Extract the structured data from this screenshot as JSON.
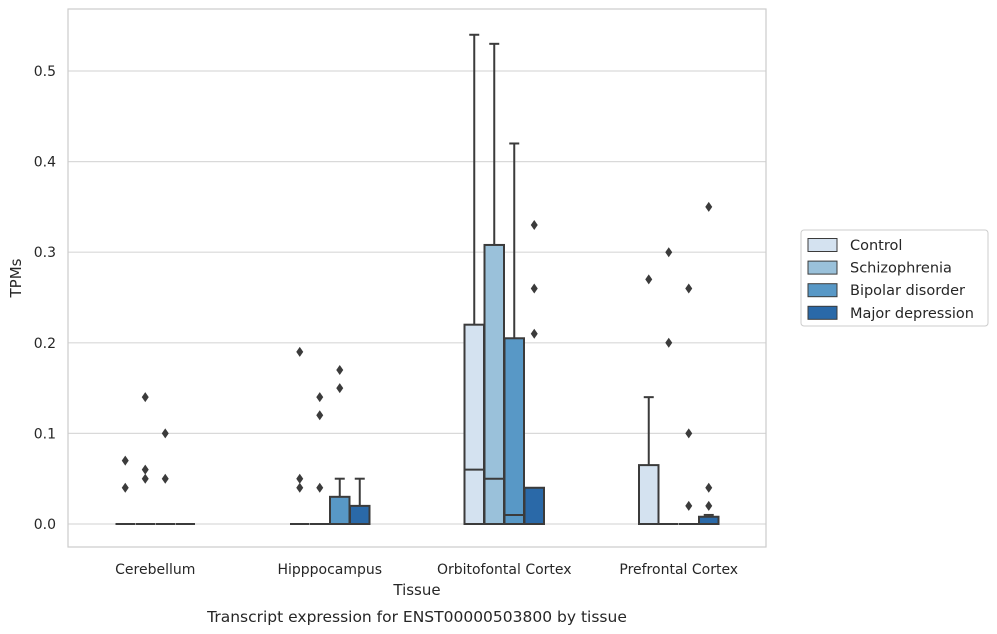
{
  "caption": "Transcript expression for ENST00000503800 by tissue",
  "chart_data": {
    "type": "box",
    "title": "",
    "xlabel": "Tissue",
    "ylabel": "TPMs",
    "ylim": [
      -0.026,
      0.57
    ],
    "yticks": [
      0.0,
      0.1,
      0.2,
      0.3,
      0.4,
      0.5
    ],
    "ytick_labels": [
      "0.0",
      "0.1",
      "0.2",
      "0.3",
      "0.4",
      "0.5"
    ],
    "grid": true,
    "legend_position": "right",
    "categories": [
      "Cerebellum",
      "Hipppocampus",
      "Orbitofontal Cortex",
      "Prefrontal Cortex"
    ],
    "series": [
      {
        "name": "Control",
        "color": "#d4e2f0",
        "boxes": [
          {
            "q1": 0,
            "median": 0,
            "q3": 0,
            "whisker_low": 0,
            "whisker_high": 0,
            "outliers": [
              0.04,
              0.07
            ]
          },
          {
            "q1": 0,
            "median": 0,
            "q3": 0,
            "whisker_low": 0,
            "whisker_high": 0,
            "outliers": [
              0.04,
              0.05,
              0.19
            ]
          },
          {
            "q1": 0,
            "median": 0.06,
            "q3": 0.22,
            "whisker_low": 0,
            "whisker_high": 0.54,
            "outliers": []
          },
          {
            "q1": 0,
            "median": 0,
            "q3": 0.065,
            "whisker_low": 0,
            "whisker_high": 0.14,
            "outliers": [
              0.27
            ]
          }
        ]
      },
      {
        "name": "Schizophrenia",
        "color": "#9ac1da",
        "boxes": [
          {
            "q1": 0,
            "median": 0,
            "q3": 0,
            "whisker_low": 0,
            "whisker_high": 0,
            "outliers": [
              0.05,
              0.06,
              0.14
            ]
          },
          {
            "q1": 0,
            "median": 0,
            "q3": 0,
            "whisker_low": 0,
            "whisker_high": 0,
            "outliers": [
              0.04,
              0.12,
              0.14
            ]
          },
          {
            "q1": 0,
            "median": 0.05,
            "q3": 0.308,
            "whisker_low": 0,
            "whisker_high": 0.53,
            "outliers": []
          },
          {
            "q1": 0,
            "median": 0,
            "q3": 0,
            "whisker_low": 0,
            "whisker_high": 0,
            "outliers": [
              0.2,
              0.3
            ]
          }
        ]
      },
      {
        "name": "Bipolar disorder",
        "color": "#5898c6",
        "boxes": [
          {
            "q1": 0,
            "median": 0,
            "q3": 0,
            "whisker_low": 0,
            "whisker_high": 0,
            "outliers": [
              0.05,
              0.1
            ]
          },
          {
            "q1": 0,
            "median": 0,
            "q3": 0.03,
            "whisker_low": 0,
            "whisker_high": 0.05,
            "outliers": [
              0.15,
              0.17
            ]
          },
          {
            "q1": 0,
            "median": 0.01,
            "q3": 0.205,
            "whisker_low": 0,
            "whisker_high": 0.42,
            "outliers": []
          },
          {
            "q1": 0,
            "median": 0,
            "q3": 0,
            "whisker_low": 0,
            "whisker_high": 0,
            "outliers": [
              0.02,
              0.1,
              0.26
            ]
          }
        ]
      },
      {
        "name": "Major depression",
        "color": "#2a69a8",
        "boxes": [
          {
            "q1": 0,
            "median": 0,
            "q3": 0,
            "whisker_low": 0,
            "whisker_high": 0,
            "outliers": []
          },
          {
            "q1": 0,
            "median": 0,
            "q3": 0.02,
            "whisker_low": 0,
            "whisker_high": 0.05,
            "outliers": []
          },
          {
            "q1": 0,
            "median": 0,
            "q3": 0.04,
            "whisker_low": 0,
            "whisker_high": 0.04,
            "outliers": [
              0.21,
              0.26,
              0.33
            ]
          },
          {
            "q1": 0,
            "median": 0,
            "q3": 0.008,
            "whisker_low": 0,
            "whisker_high": 0.01,
            "outliers": [
              0.02,
              0.04,
              0.35
            ]
          }
        ]
      }
    ]
  }
}
